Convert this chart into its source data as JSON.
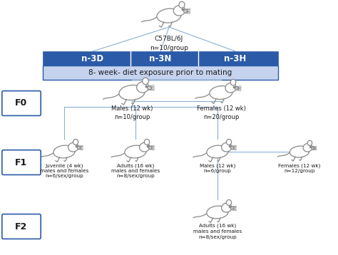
{
  "background_color": "#ffffff",
  "box_blue_dark": "#2B5BA8",
  "box_blue_light": "#C5D3EE",
  "line_color": "#8BAFD4",
  "text_color_white": "#ffffff",
  "text_color_dark": "#1a1a1a",
  "groups": [
    "n-3D",
    "n-3N",
    "n-3H"
  ],
  "top_label": "C57BL/6J\nn=10/group",
  "diet_label": "8- week- diet exposure prior to mating",
  "F0_label": "F0",
  "F1_label": "F1",
  "F2_label": "F2",
  "male_F0": "Males (12 wk)\nn=10/group",
  "female_F0": "Females (12 wk)\nn=20/group",
  "F1_node1": "Juvenile (4 wk)\nmales and females\nn=6/sex/group",
  "F1_node2": "Adults (16 wk)\nmales and females\nn=8/sex/group",
  "F1_node3": "Males (12 wk)\nn=6/group",
  "F1_node4": "Females (12 wk)\nn=12/group",
  "F2_node": "Adults (16 wk)\nmales and females\nn=8/sex/group"
}
